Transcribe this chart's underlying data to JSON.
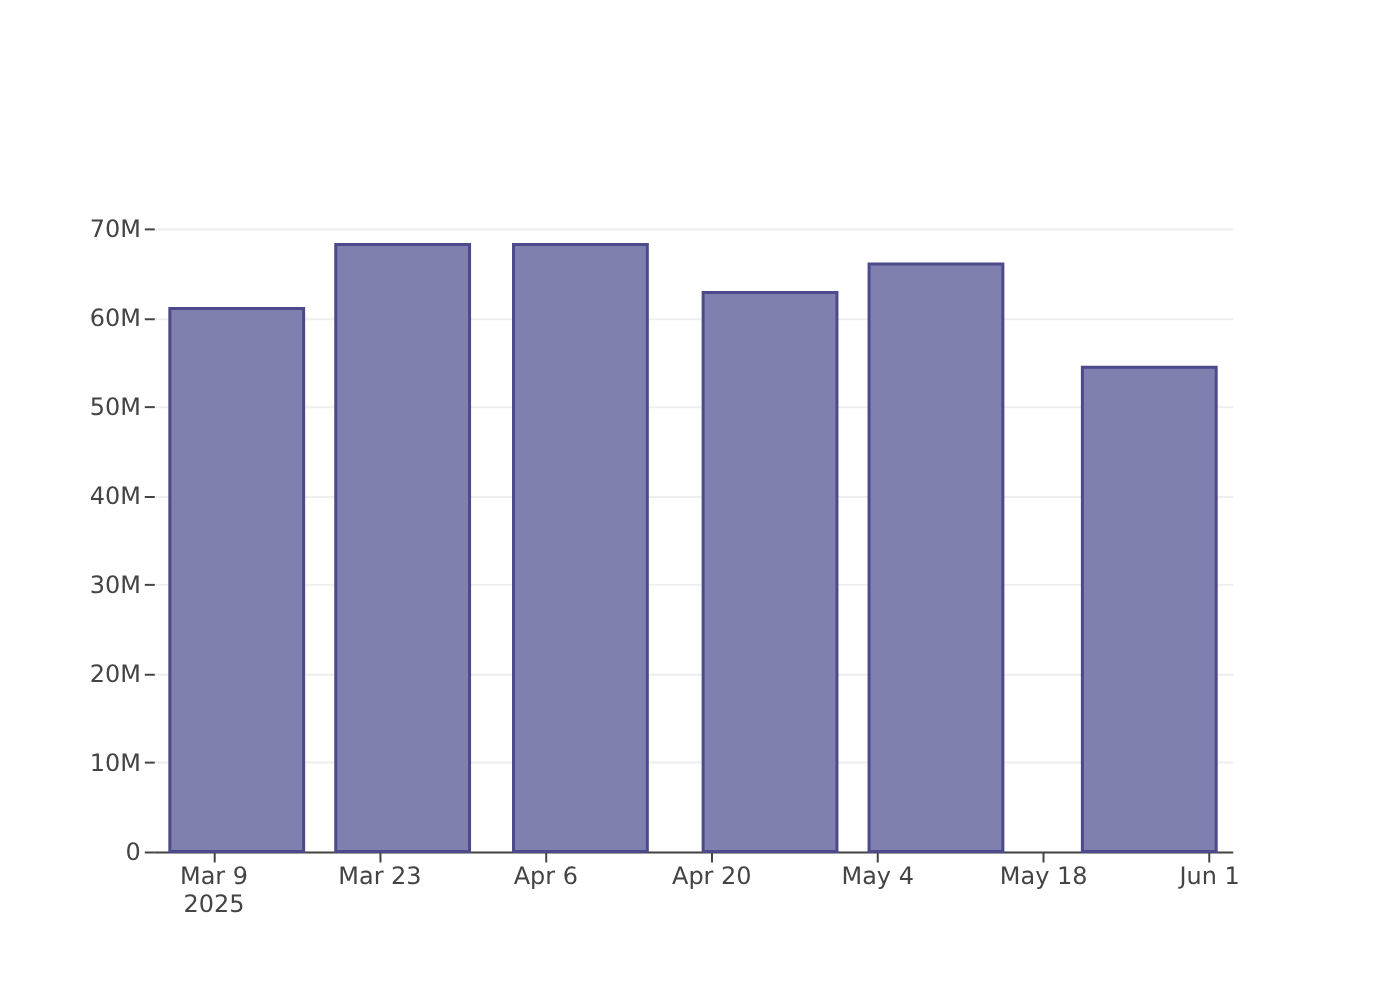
{
  "chart_data": {
    "type": "bar",
    "x": [
      "2025-03-11",
      "2025-03-25",
      "2025-04-09",
      "2025-04-25",
      "2025-05-09",
      "2025-05-27"
    ],
    "values": [
      61000000,
      68200000,
      68200000,
      62800000,
      66000000,
      54400000
    ],
    "color": "#7f7fb0",
    "xlim": [
      "2025-03-04",
      "2025-06-03"
    ],
    "xticks": [
      {
        "value": "2025-03-09",
        "label": "Mar 9\n2025"
      },
      {
        "value": "2025-03-23",
        "label": "Mar 23"
      },
      {
        "value": "2025-04-06",
        "label": "Apr 6"
      },
      {
        "value": "2025-04-20",
        "label": "Apr 20"
      },
      {
        "value": "2025-05-04",
        "label": "May 4"
      },
      {
        "value": "2025-05-18",
        "label": "May 18"
      },
      {
        "value": "2025-06-01",
        "label": "Jun 1"
      }
    ],
    "ylim": [
      0,
      70000000
    ],
    "yticks": [
      0,
      {
        "value": 10000000,
        "label": "10M"
      },
      {
        "value": 20000000,
        "label": "20M"
      },
      {
        "value": 30000000,
        "label": "30M"
      },
      {
        "value": 40000000,
        "label": "40M"
      },
      {
        "value": 50000000,
        "label": "50M"
      },
      {
        "value": 60000000,
        "label": "60M"
      },
      {
        "value": 70000000,
        "label": "70M"
      }
    ],
    "grid": "y"
  }
}
